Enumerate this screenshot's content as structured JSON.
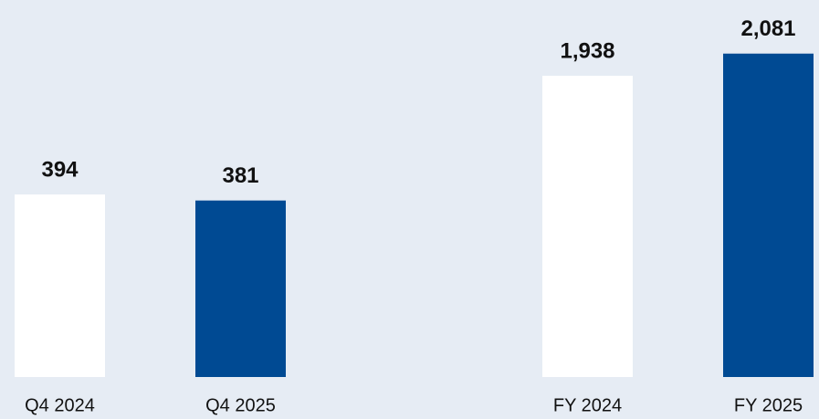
{
  "chart_data": [
    {
      "type": "bar",
      "categories": [
        "Q4 2024",
        "Q4 2025"
      ],
      "values": [
        394,
        381
      ],
      "colors": [
        "#ffffff",
        "#004a93"
      ],
      "ylim": [
        0,
        735
      ]
    },
    {
      "type": "bar",
      "categories": [
        "FY 2024",
        "FY 2025"
      ],
      "values": [
        1938,
        2081
      ],
      "value_labels": [
        "1,938",
        "2,081"
      ],
      "colors": [
        "#ffffff",
        "#004a93"
      ],
      "ylim": [
        0,
        2191
      ]
    }
  ]
}
